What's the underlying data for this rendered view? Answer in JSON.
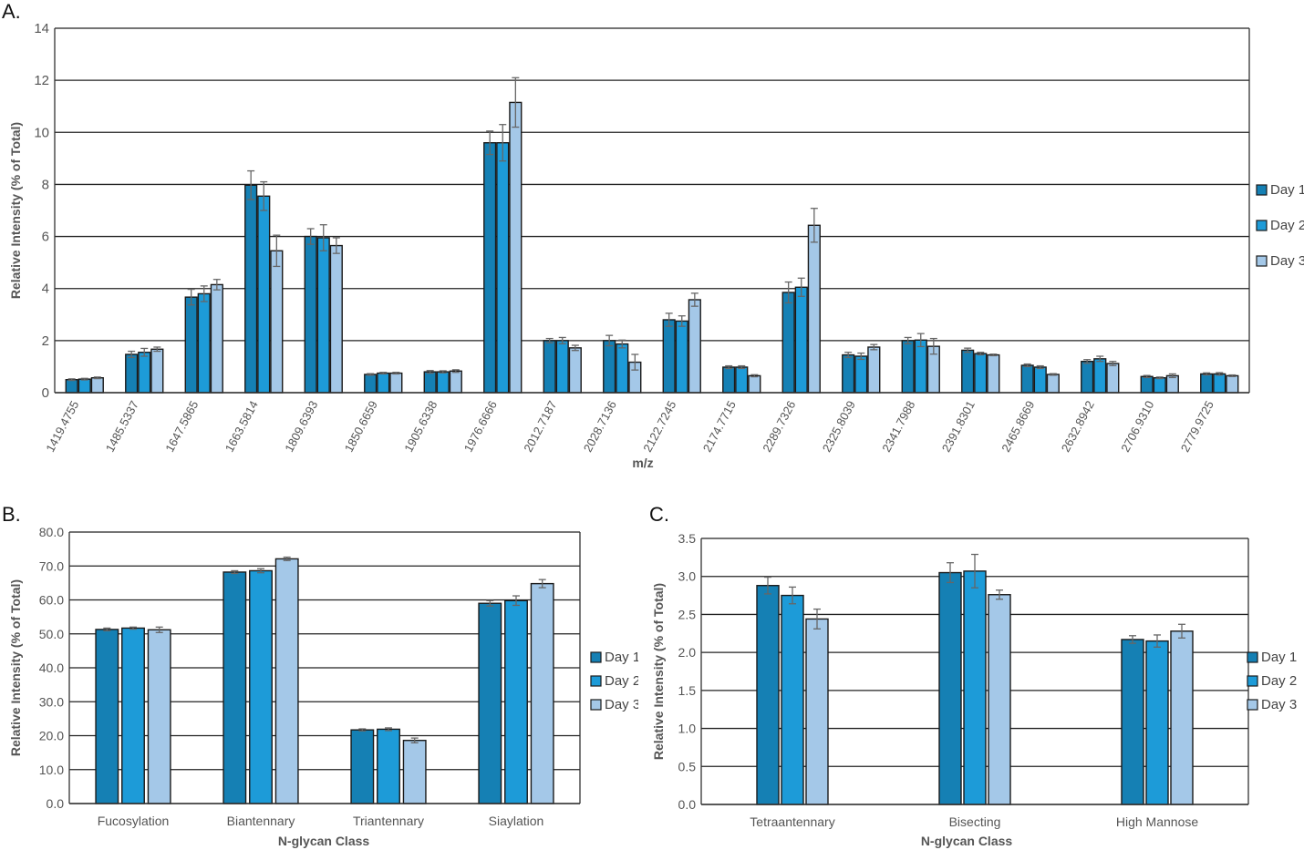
{
  "panel_labels": {
    "a": "A.",
    "b": "B.",
    "c": "C."
  },
  "colors": {
    "day1": "#1580b4",
    "day2": "#1d9bd8",
    "day3": "#a4c8e8",
    "grid": "#222222",
    "error": "#666666"
  },
  "chart_data": [
    {
      "id": "A",
      "type": "bar",
      "title": "",
      "xlabel": "m/z",
      "ylabel": "Relative Intensity (% of Total)",
      "ylim": [
        0,
        14
      ],
      "yticks": [
        "0",
        "2",
        "4",
        "6",
        "8",
        "10",
        "12",
        "14"
      ],
      "grid": true,
      "legend_position": "right",
      "categories": [
        "1419.4755",
        "1485.5337",
        "1647.5865",
        "1663.5814",
        "1809.6393",
        "1850.6659",
        "1905.6338",
        "1976.6666",
        "2012.7187",
        "2028.7136",
        "2122.7245",
        "2174.7715",
        "2289.7326",
        "2325.8039",
        "2341.7988",
        "2391.8301",
        "2465.8669",
        "2632.8942",
        "2706.9310",
        "2779.9725"
      ],
      "series": [
        {
          "name": "Day 1",
          "values": [
            0.5,
            1.47,
            3.67,
            7.97,
            6.0,
            0.7,
            0.8,
            9.6,
            2.0,
            2.0,
            2.8,
            0.98,
            3.85,
            1.45,
            2.0,
            1.63,
            1.05,
            1.2,
            0.62,
            0.72
          ],
          "errors": [
            0.03,
            0.12,
            0.3,
            0.55,
            0.3,
            0.03,
            0.05,
            0.45,
            0.08,
            0.2,
            0.25,
            0.05,
            0.4,
            0.1,
            0.12,
            0.08,
            0.05,
            0.07,
            0.04,
            0.04
          ]
        },
        {
          "name": "Day 2",
          "values": [
            0.52,
            1.55,
            3.8,
            7.55,
            5.95,
            0.75,
            0.8,
            9.6,
            2.0,
            1.87,
            2.75,
            0.98,
            4.05,
            1.4,
            2.02,
            1.5,
            0.98,
            1.3,
            0.57,
            0.72
          ],
          "errors": [
            0.03,
            0.15,
            0.3,
            0.55,
            0.5,
            0.03,
            0.04,
            0.7,
            0.12,
            0.15,
            0.2,
            0.05,
            0.35,
            0.12,
            0.25,
            0.05,
            0.05,
            0.1,
            0.03,
            0.05
          ]
        },
        {
          "name": "Day 3",
          "values": [
            0.57,
            1.67,
            4.15,
            5.45,
            5.65,
            0.75,
            0.83,
            11.15,
            1.72,
            1.17,
            3.57,
            0.65,
            6.43,
            1.75,
            1.78,
            1.45,
            0.7,
            1.12,
            0.65,
            0.65
          ],
          "errors": [
            0.03,
            0.08,
            0.2,
            0.6,
            0.3,
            0.03,
            0.05,
            0.95,
            0.1,
            0.3,
            0.25,
            0.04,
            0.65,
            0.1,
            0.3,
            0.03,
            0.03,
            0.08,
            0.07,
            0.03
          ]
        }
      ]
    },
    {
      "id": "B",
      "type": "bar",
      "title": "",
      "xlabel": "N-glycan Class",
      "ylabel": "Relative Intensity  (% of Total)",
      "ylim": [
        0,
        80
      ],
      "yticks": [
        "0.0",
        "10.0",
        "20.0",
        "30.0",
        "40.0",
        "50.0",
        "60.0",
        "70.0",
        "80.0"
      ],
      "grid": true,
      "legend_position": "right",
      "categories": [
        "Fucosylation",
        "Biantennary",
        "Triantennary",
        "Siaylation"
      ],
      "series": [
        {
          "name": "Day 1",
          "values": [
            51.3,
            68.2,
            21.7,
            59.0
          ],
          "errors": [
            0.4,
            0.4,
            0.3,
            0.8
          ]
        },
        {
          "name": "Day 2",
          "values": [
            51.7,
            68.6,
            21.9,
            59.8
          ],
          "errors": [
            0.3,
            0.6,
            0.4,
            1.4
          ]
        },
        {
          "name": "Day 3",
          "values": [
            51.2,
            72.1,
            18.6,
            64.8
          ],
          "errors": [
            0.8,
            0.5,
            0.7,
            1.2
          ]
        }
      ]
    },
    {
      "id": "C",
      "type": "bar",
      "title": "",
      "xlabel": "N-glycan Class",
      "ylabel": "Relative Intensity  (% of Total)",
      "ylim": [
        0,
        3.5
      ],
      "yticks": [
        "0.0",
        "0.5",
        "1.0",
        "1.5",
        "2.0",
        "2.5",
        "3.0",
        "3.5"
      ],
      "grid": true,
      "legend_position": "right",
      "categories": [
        "Tetraantennary",
        "Bisecting",
        "High Mannose"
      ],
      "series": [
        {
          "name": "Day 1",
          "values": [
            2.88,
            3.05,
            2.17
          ],
          "errors": [
            0.11,
            0.13,
            0.05
          ]
        },
        {
          "name": "Day 2",
          "values": [
            2.75,
            3.07,
            2.15
          ],
          "errors": [
            0.11,
            0.22,
            0.08
          ]
        },
        {
          "name": "Day 3",
          "values": [
            2.44,
            2.76,
            2.28
          ],
          "errors": [
            0.13,
            0.06,
            0.09
          ]
        }
      ]
    }
  ]
}
